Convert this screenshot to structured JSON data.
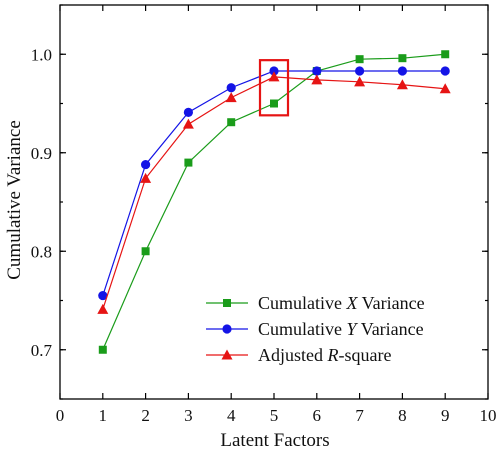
{
  "chart_data": {
    "type": "line",
    "xlabel": "Latent Factors",
    "ylabel": "Cumulative Variance",
    "xlim": [
      0,
      10
    ],
    "ylim": [
      0.65,
      1.05
    ],
    "xticks": [
      0,
      1,
      2,
      3,
      4,
      5,
      6,
      7,
      8,
      9,
      10
    ],
    "yticks": [
      0.7,
      0.8,
      0.9,
      1.0
    ],
    "ytick_labels": [
      "0.7",
      "0.8",
      "0.9",
      "1.0"
    ],
    "grid": false,
    "legend_position": "bottom-right",
    "x": [
      1,
      2,
      3,
      4,
      5,
      6,
      7,
      8,
      9
    ],
    "series": [
      {
        "name_pre": "Cumulative ",
        "name_italic": "X",
        "name_post": " Variance",
        "color": "#1a9c1a",
        "marker": "square",
        "values": [
          0.7,
          0.8,
          0.89,
          0.931,
          0.95,
          0.983,
          0.995,
          0.996,
          1.0
        ]
      },
      {
        "name_pre": "Cumulative ",
        "name_italic": "Y",
        "name_post": " Variance",
        "color": "#1414e6",
        "marker": "circle",
        "values": [
          0.755,
          0.888,
          0.941,
          0.966,
          0.983,
          0.983,
          0.983,
          0.983,
          0.983
        ]
      },
      {
        "name_pre": "Adjusted ",
        "name_italic": "R",
        "name_post": "-square",
        "color": "#e61414",
        "marker": "triangle",
        "values": [
          0.741,
          0.874,
          0.929,
          0.956,
          0.977,
          0.974,
          0.972,
          0.969,
          0.965
        ]
      }
    ],
    "highlight": {
      "x": 5,
      "y_range": [
        0.938,
        0.994
      ],
      "color": "#e61414"
    }
  }
}
